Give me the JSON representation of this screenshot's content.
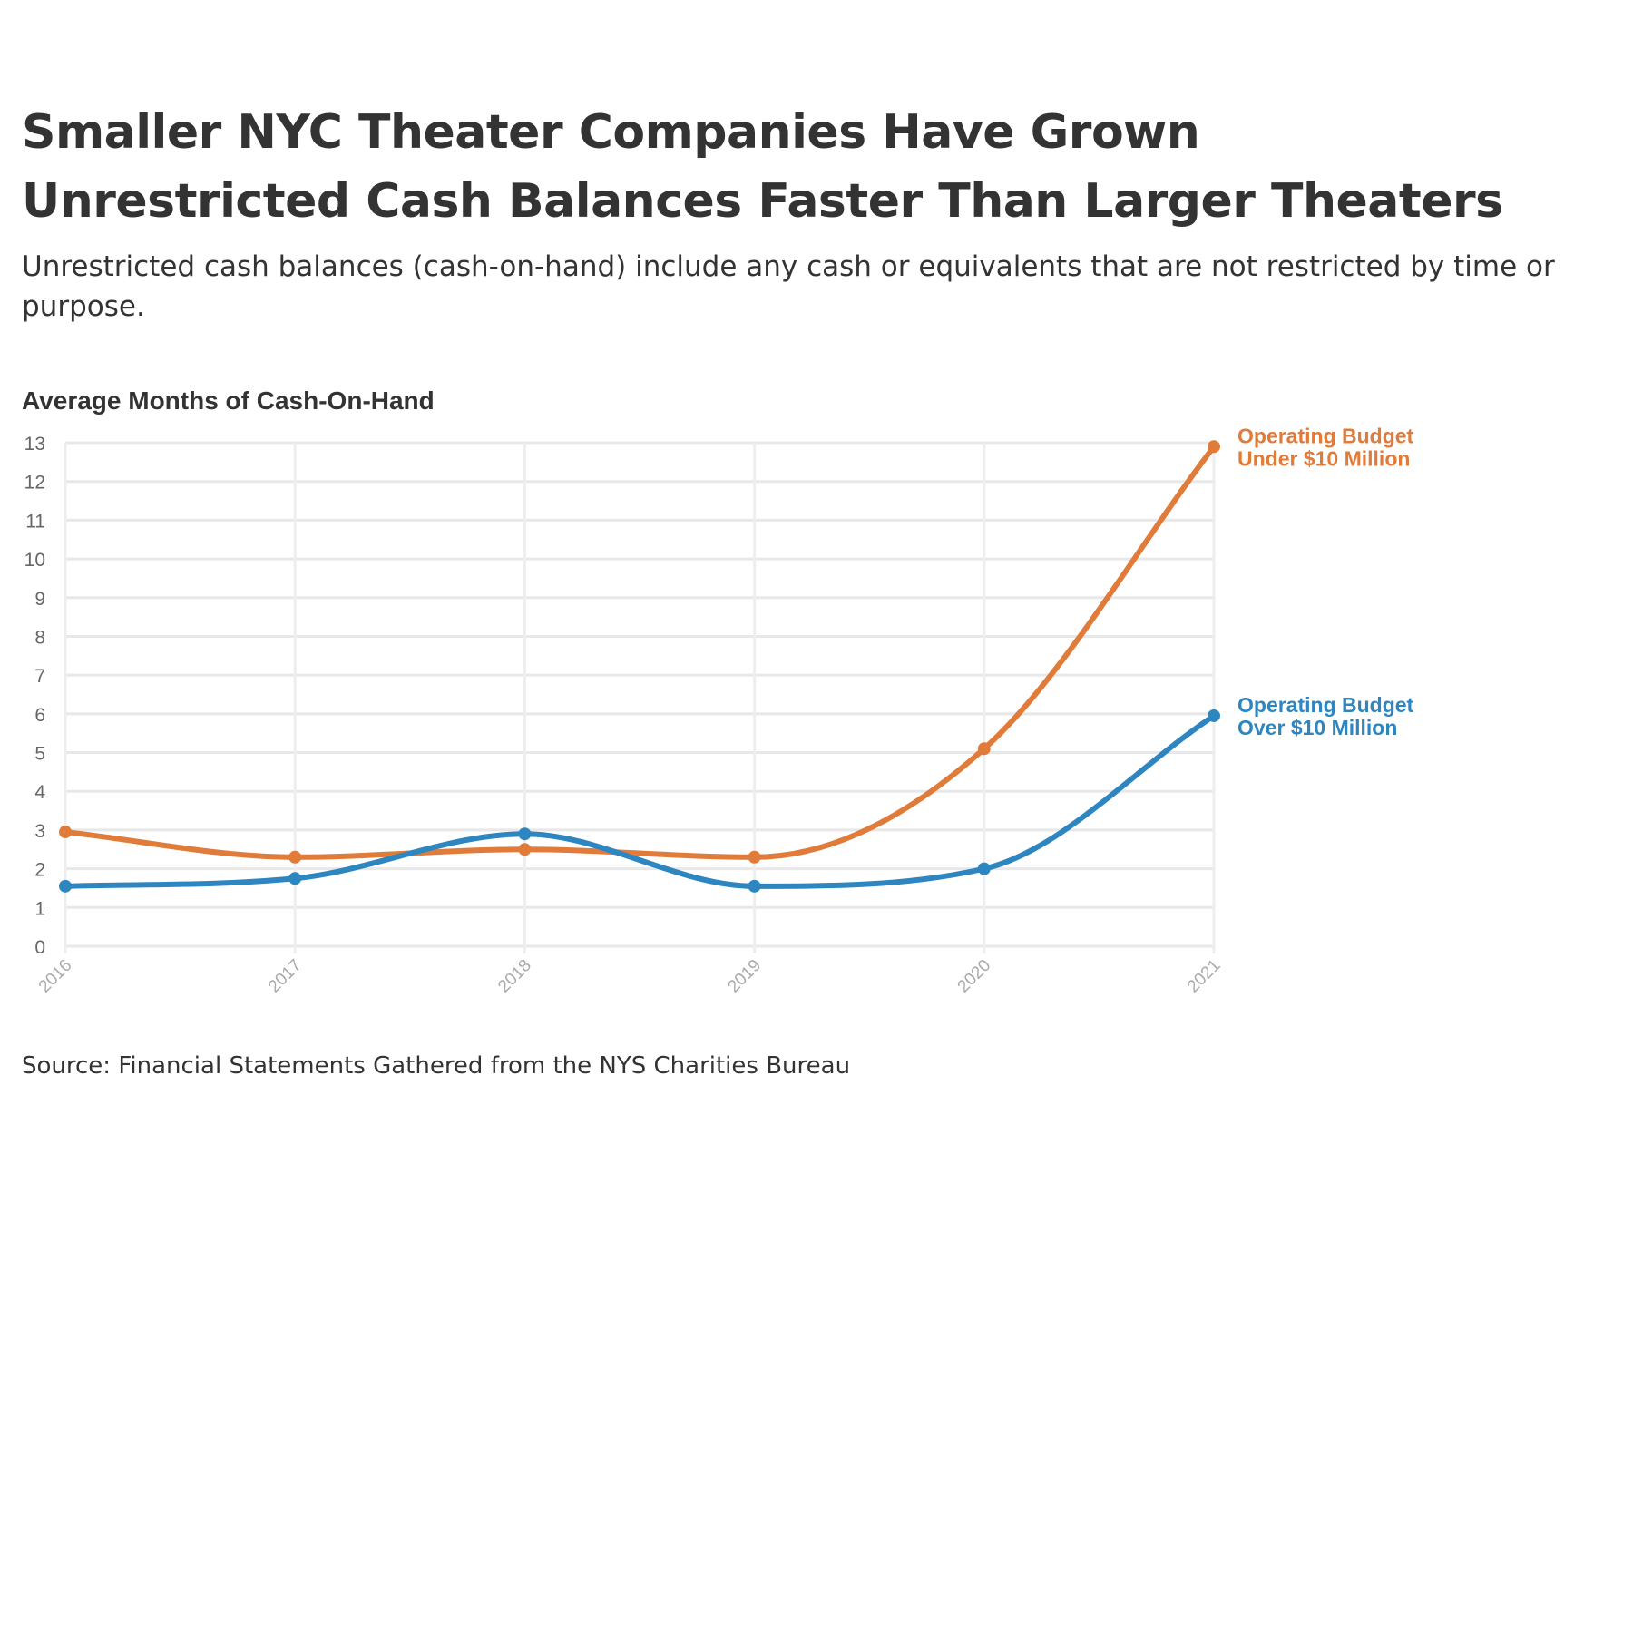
{
  "header": {
    "title_line1": "Smaller NYC Theater Companies Have Grown",
    "title_line2": "Unrestricted Cash Balances Faster Than Larger Theaters",
    "subtitle": "Unrestricted cash balances (cash-on-hand) include any cash or equivalents that are not restricted by time or purpose."
  },
  "chart_data": {
    "type": "line",
    "title": "Average Months of Cash-On-Hand",
    "xlabel": "",
    "ylabel": "Average Months of Cash-On-Hand",
    "categories": [
      "2016",
      "2017",
      "2018",
      "2019",
      "2020",
      "2021"
    ],
    "ylim": [
      0,
      13
    ],
    "yticks": [
      "0",
      "1",
      "2",
      "3",
      "4",
      "5",
      "6",
      "7",
      "8",
      "9",
      "10",
      "11",
      "12",
      "13"
    ],
    "grid": true,
    "legend": "direct labels at right end of lines",
    "series": [
      {
        "name": "Operating Budget Under $10 Million",
        "label_lines": [
          "Operating Budget",
          "Under $10 Million"
        ],
        "color": "#e07b39",
        "values": [
          2.95,
          2.3,
          2.5,
          2.3,
          5.1,
          12.9
        ]
      },
      {
        "name": "Operating Budget Over $10 Million",
        "label_lines": [
          "Operating Budget",
          "Over $10 Million"
        ],
        "color": "#2e86c1",
        "values": [
          1.55,
          1.75,
          2.9,
          1.55,
          2.0,
          5.95
        ]
      }
    ]
  },
  "footer": {
    "source": "Source: Financial Statements Gathered from the NYS Charities Bureau"
  }
}
